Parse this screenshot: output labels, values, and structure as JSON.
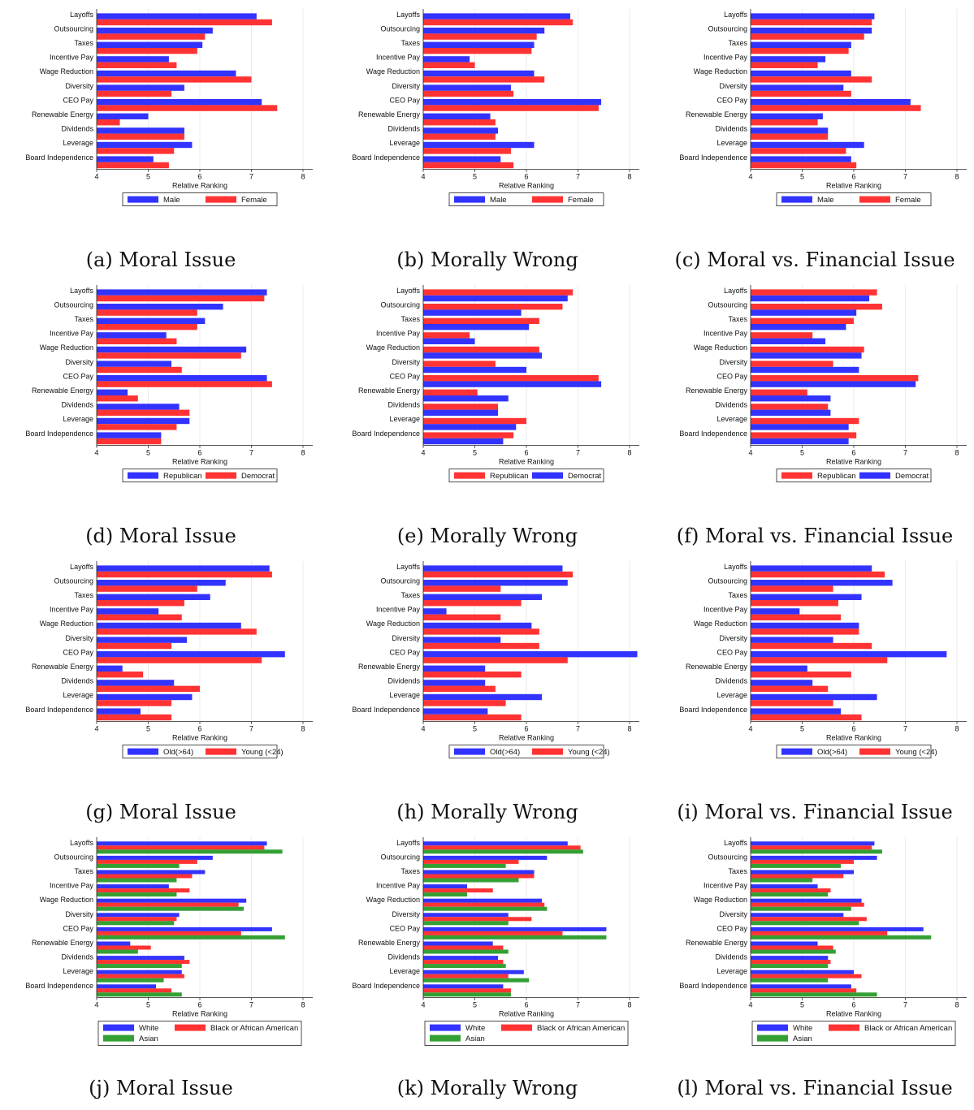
{
  "chart_data": [
    {
      "id": "a",
      "caption": "(a) Moral Issue",
      "type": "bar",
      "orientation": "horizontal",
      "xlabel": "Relative Ranking",
      "xlim": [
        4,
        8
      ],
      "xticks": [
        4,
        5,
        6,
        7,
        8
      ],
      "categories": [
        "Layoffs",
        "Outsourcing",
        "Taxes",
        "Incentive Pay",
        "Wage Reduction",
        "Diversity",
        "CEO Pay",
        "Renewable Energy",
        "Dividends",
        "Leverage",
        "Board Independence"
      ],
      "series": [
        {
          "name": "Male",
          "color": "#3333ff",
          "values": [
            7.1,
            6.25,
            6.05,
            5.4,
            6.7,
            5.7,
            7.2,
            5.0,
            5.7,
            5.85,
            5.1
          ]
        },
        {
          "name": "Female",
          "color": "#ff3333",
          "values": [
            7.4,
            6.1,
            5.95,
            5.55,
            7.0,
            5.45,
            7.5,
            4.45,
            5.7,
            5.5,
            5.4
          ]
        }
      ],
      "legend": [
        "Male",
        "Female"
      ]
    },
    {
      "id": "b",
      "caption": "(b) Morally Wrong",
      "type": "bar",
      "orientation": "horizontal",
      "xlabel": "Relative Ranking",
      "xlim": [
        4,
        8
      ],
      "xticks": [
        4,
        5,
        6,
        7,
        8
      ],
      "categories": [
        "Layoffs",
        "Outsourcing",
        "Taxes",
        "Incentive Pay",
        "Wage Reduction",
        "Diversity",
        "CEO Pay",
        "Renewable Energy",
        "Dividends",
        "Leverage",
        "Board Independence"
      ],
      "series": [
        {
          "name": "Male",
          "color": "#3333ff",
          "values": [
            6.85,
            6.35,
            6.15,
            4.9,
            6.15,
            5.7,
            7.45,
            5.3,
            5.45,
            6.15,
            5.5
          ]
        },
        {
          "name": "Female",
          "color": "#ff3333",
          "values": [
            6.9,
            6.2,
            6.1,
            5.0,
            6.35,
            5.75,
            7.4,
            5.4,
            5.4,
            5.7,
            5.75
          ]
        }
      ],
      "legend": [
        "Male",
        "Female"
      ]
    },
    {
      "id": "c",
      "caption": "(c) Moral vs. Financial Issue",
      "type": "bar",
      "orientation": "horizontal",
      "xlabel": "Relative Ranking",
      "xlim": [
        4,
        8
      ],
      "xticks": [
        4,
        5,
        6,
        7,
        8
      ],
      "categories": [
        "Layoffs",
        "Outsourcing",
        "Taxes",
        "Incentive Pay",
        "Wage Reduction",
        "Diversity",
        "CEO Pay",
        "Renewable Energy",
        "Dividends",
        "Leverage",
        "Board Independence"
      ],
      "series": [
        {
          "name": "Male",
          "color": "#3333ff",
          "values": [
            6.4,
            6.35,
            5.95,
            5.45,
            5.95,
            5.8,
            7.1,
            5.4,
            5.5,
            6.2,
            5.95
          ]
        },
        {
          "name": "Female",
          "color": "#ff3333",
          "values": [
            6.35,
            6.2,
            5.9,
            5.3,
            6.35,
            5.95,
            7.3,
            5.3,
            5.5,
            5.85,
            6.05
          ]
        }
      ],
      "legend": [
        "Male",
        "Female"
      ]
    },
    {
      "id": "d",
      "caption": "(d) Moral Issue",
      "type": "bar",
      "orientation": "horizontal",
      "xlabel": "Relative Ranking",
      "xlim": [
        4,
        8
      ],
      "xticks": [
        4,
        5,
        6,
        7,
        8
      ],
      "categories": [
        "Layoffs",
        "Outsourcing",
        "Taxes",
        "Incentive Pay",
        "Wage Reduction",
        "Diversity",
        "CEO Pay",
        "Renewable Energy",
        "Dividends",
        "Leverage",
        "Board Independence"
      ],
      "series": [
        {
          "name": "Republican",
          "color": "#3333ff",
          "values": [
            7.3,
            6.45,
            6.1,
            5.35,
            6.9,
            5.45,
            7.3,
            4.6,
            5.6,
            5.8,
            5.25
          ]
        },
        {
          "name": "Democrat",
          "color": "#ff3333",
          "values": [
            7.25,
            5.95,
            5.95,
            5.55,
            6.8,
            5.65,
            7.4,
            4.8,
            5.8,
            5.55,
            5.25
          ]
        }
      ],
      "legend": [
        "Republican",
        "Democrat"
      ]
    },
    {
      "id": "e",
      "caption": "(e) Morally Wrong",
      "type": "bar",
      "orientation": "horizontal",
      "xlabel": "Relative Ranking",
      "xlim": [
        4,
        8
      ],
      "xticks": [
        4,
        5,
        6,
        7,
        8
      ],
      "categories": [
        "Layoffs",
        "Outsourcing",
        "Taxes",
        "Incentive Pay",
        "Wage Reduction",
        "Diversity",
        "CEO Pay",
        "Renewable Energy",
        "Dividends",
        "Leverage",
        "Board Independence"
      ],
      "series": [
        {
          "name": "Republican",
          "color": "#ff3333",
          "values": [
            6.9,
            6.7,
            6.25,
            4.9,
            6.25,
            5.4,
            7.4,
            5.05,
            5.45,
            6.0,
            5.75
          ]
        },
        {
          "name": "Democrat",
          "color": "#3333ff",
          "values": [
            6.8,
            5.9,
            6.05,
            5.0,
            6.3,
            6.0,
            7.45,
            5.65,
            5.45,
            5.8,
            5.55
          ]
        }
      ],
      "legend": [
        "Republican",
        "Democrat"
      ]
    },
    {
      "id": "f",
      "caption": "(f) Moral vs. Financial Issue",
      "type": "bar",
      "orientation": "horizontal",
      "xlabel": "Relative Ranking",
      "xlim": [
        4,
        8
      ],
      "xticks": [
        4,
        5,
        6,
        7,
        8
      ],
      "categories": [
        "Layoffs",
        "Outsourcing",
        "Taxes",
        "Incentive Pay",
        "Wage Reduction",
        "Diversity",
        "CEO Pay",
        "Renewable Energy",
        "Dividends",
        "Leverage",
        "Board Independence"
      ],
      "series": [
        {
          "name": "Republican",
          "color": "#ff3333",
          "values": [
            6.45,
            6.55,
            6.0,
            5.2,
            6.2,
            5.6,
            7.25,
            5.1,
            5.5,
            6.1,
            6.05
          ]
        },
        {
          "name": "Democrat",
          "color": "#3333ff",
          "values": [
            6.3,
            6.05,
            5.85,
            5.45,
            6.15,
            6.1,
            7.2,
            5.55,
            5.55,
            5.9,
            5.9
          ]
        }
      ],
      "legend": [
        "Republican",
        "Democrat"
      ]
    },
    {
      "id": "g",
      "caption": "(g) Moral Issue",
      "type": "bar",
      "orientation": "horizontal",
      "xlabel": "Relative Ranking",
      "xlim": [
        4,
        8
      ],
      "xticks": [
        4,
        5,
        6,
        7,
        8
      ],
      "categories": [
        "Layoffs",
        "Outsourcing",
        "Taxes",
        "Incentive Pay",
        "Wage Reduction",
        "Diversity",
        "CEO Pay",
        "Renewable Energy",
        "Dividends",
        "Leverage",
        "Board Independence"
      ],
      "series": [
        {
          "name": "Old(>64)",
          "color": "#3333ff",
          "values": [
            7.35,
            6.5,
            6.2,
            5.2,
            6.8,
            5.75,
            7.65,
            4.5,
            5.5,
            5.85,
            4.85
          ]
        },
        {
          "name": "Young (<24)",
          "color": "#ff3333",
          "values": [
            7.4,
            5.95,
            5.7,
            5.65,
            7.1,
            5.45,
            7.2,
            4.9,
            6.0,
            5.45,
            5.45
          ]
        }
      ],
      "legend": [
        "Old(>64)",
        "Young (<24)"
      ]
    },
    {
      "id": "h",
      "caption": "(h) Morally Wrong",
      "type": "bar",
      "orientation": "horizontal",
      "xlabel": "Relative Ranking",
      "xlim": [
        4,
        8
      ],
      "xticks": [
        4,
        5,
        6,
        7,
        8
      ],
      "categories": [
        "Layoffs",
        "Outsourcing",
        "Taxes",
        "Incentive Pay",
        "Wage Reduction",
        "Diversity",
        "CEO Pay",
        "Renewable Energy",
        "Dividends",
        "Leverage",
        "Board Independence"
      ],
      "series": [
        {
          "name": "Old(>64)",
          "color": "#3333ff",
          "values": [
            6.7,
            6.8,
            6.3,
            4.45,
            6.1,
            5.5,
            8.15,
            5.2,
            5.2,
            6.3,
            5.25
          ]
        },
        {
          "name": "Young (<24)",
          "color": "#ff3333",
          "values": [
            6.9,
            5.5,
            5.9,
            5.5,
            6.25,
            6.25,
            6.8,
            5.9,
            5.4,
            5.6,
            5.9
          ]
        }
      ],
      "legend": [
        "Old(>64)",
        "Young (<24)"
      ]
    },
    {
      "id": "i",
      "caption": "(i) Moral vs. Financial Issue",
      "type": "bar",
      "orientation": "horizontal",
      "xlabel": "Relative Ranking",
      "xlim": [
        4,
        8
      ],
      "xticks": [
        4,
        5,
        6,
        7,
        8
      ],
      "categories": [
        "Layoffs",
        "Outsourcing",
        "Taxes",
        "Incentive Pay",
        "Wage Reduction",
        "Diversity",
        "CEO Pay",
        "Renewable Energy",
        "Dividends",
        "Leverage",
        "Board Independence"
      ],
      "series": [
        {
          "name": "Old(>64)",
          "color": "#3333ff",
          "values": [
            6.35,
            6.75,
            6.15,
            4.95,
            6.1,
            5.6,
            7.8,
            5.1,
            5.2,
            6.45,
            5.75
          ]
        },
        {
          "name": "Young (<24)",
          "color": "#ff3333",
          "values": [
            6.6,
            5.6,
            5.7,
            5.75,
            6.1,
            6.35,
            6.65,
            5.95,
            5.5,
            5.6,
            6.15
          ]
        }
      ],
      "legend": [
        "Old(>64)",
        "Young (<24)"
      ]
    },
    {
      "id": "j",
      "caption": "(j) Moral Issue",
      "type": "bar",
      "orientation": "horizontal",
      "xlabel": "Relative Ranking",
      "xlim": [
        4,
        8
      ],
      "xticks": [
        4,
        5,
        6,
        7,
        8
      ],
      "categories": [
        "Layoffs",
        "Outsourcing",
        "Taxes",
        "Incentive Pay",
        "Wage Reduction",
        "Diversity",
        "CEO Pay",
        "Renewable Energy",
        "Dividends",
        "Leverage",
        "Board Independence"
      ],
      "series": [
        {
          "name": "White",
          "color": "#3333ff",
          "values": [
            7.3,
            6.25,
            6.1,
            5.4,
            6.9,
            5.6,
            7.4,
            4.65,
            5.7,
            5.65,
            5.15
          ]
        },
        {
          "name": "Black or African American",
          "color": "#ff3333",
          "values": [
            7.25,
            5.95,
            5.85,
            5.8,
            6.75,
            5.55,
            6.8,
            5.05,
            5.8,
            5.7,
            5.45
          ]
        },
        {
          "name": "Asian",
          "color": "#33a033",
          "values": [
            7.6,
            5.6,
            5.55,
            5.55,
            6.85,
            5.5,
            7.65,
            4.8,
            5.65,
            5.3,
            5.65
          ]
        }
      ],
      "legend": [
        "White",
        "Black or African American",
        "Asian"
      ]
    },
    {
      "id": "k",
      "caption": "(k) Morally Wrong",
      "type": "bar",
      "orientation": "horizontal",
      "xlabel": "Relative Ranking",
      "xlim": [
        4,
        8
      ],
      "xticks": [
        4,
        5,
        6,
        7,
        8
      ],
      "categories": [
        "Layoffs",
        "Outsourcing",
        "Taxes",
        "Incentive Pay",
        "Wage Reduction",
        "Diversity",
        "CEO Pay",
        "Renewable Energy",
        "Dividends",
        "Leverage",
        "Board Independence"
      ],
      "series": [
        {
          "name": "White",
          "color": "#3333ff",
          "values": [
            6.8,
            6.4,
            6.15,
            4.85,
            6.3,
            5.65,
            7.55,
            5.35,
            5.45,
            5.95,
            5.55
          ]
        },
        {
          "name": "Black or African American",
          "color": "#ff3333",
          "values": [
            7.05,
            5.85,
            6.15,
            5.35,
            6.35,
            6.1,
            6.7,
            5.55,
            5.55,
            5.65,
            5.7
          ]
        },
        {
          "name": "Asian",
          "color": "#33a033",
          "values": [
            7.1,
            5.6,
            5.85,
            4.85,
            6.4,
            5.65,
            7.55,
            5.65,
            5.6,
            6.05,
            5.7
          ]
        }
      ],
      "legend": [
        "White",
        "Black or African American",
        "Asian"
      ]
    },
    {
      "id": "l",
      "caption": "(l) Moral vs. Financial Issue",
      "type": "bar",
      "orientation": "horizontal",
      "xlabel": "Relative Ranking",
      "xlim": [
        4,
        8
      ],
      "xticks": [
        4,
        5,
        6,
        7,
        8
      ],
      "categories": [
        "Layoffs",
        "Outsourcing",
        "Taxes",
        "Incentive Pay",
        "Wage Reduction",
        "Diversity",
        "CEO Pay",
        "Renewable Energy",
        "Dividends",
        "Leverage",
        "Board Independence"
      ],
      "series": [
        {
          "name": "White",
          "color": "#3333ff",
          "values": [
            6.4,
            6.45,
            6.0,
            5.3,
            6.15,
            5.8,
            7.35,
            5.3,
            5.5,
            6.0,
            5.95
          ]
        },
        {
          "name": "Black or African American",
          "color": "#ff3333",
          "values": [
            6.35,
            6.0,
            5.8,
            5.55,
            6.2,
            6.25,
            6.65,
            5.6,
            5.55,
            6.15,
            6.05
          ]
        },
        {
          "name": "Asian",
          "color": "#33a033",
          "values": [
            6.55,
            5.75,
            5.2,
            5.5,
            5.95,
            6.1,
            7.5,
            5.65,
            5.5,
            5.5,
            6.45
          ]
        }
      ],
      "legend": [
        "White",
        "Black or African American",
        "Asian"
      ]
    }
  ]
}
